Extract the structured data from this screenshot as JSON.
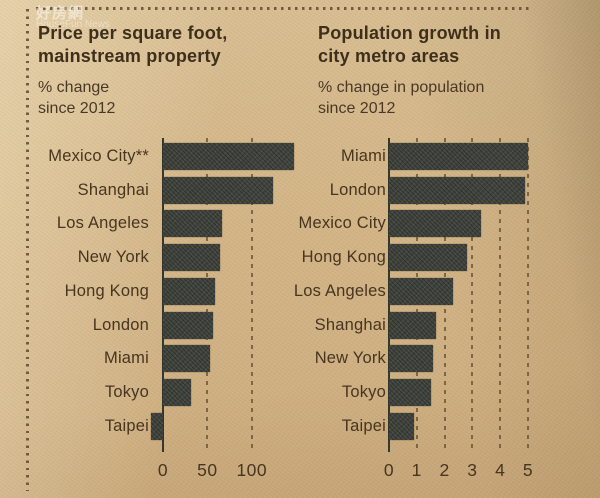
{
  "watermark": {
    "line1": "好房網",
    "line2": "HouseFun News"
  },
  "chart_data": [
    {
      "type": "bar",
      "orientation": "horizontal",
      "title": "Price per square foot, mainstream property",
      "title_lines": [
        "Price per square foot,",
        "mainstream property"
      ],
      "subtitle": "% change since 2012",
      "subtitle_lines": [
        "% change",
        "since 2012"
      ],
      "categories": [
        "Mexico City**",
        "Shanghai",
        "Los Angeles",
        "New York",
        "Hong Kong",
        "London",
        "Miami",
        "Tokyo",
        "Taipei"
      ],
      "values": [
        148,
        124,
        67,
        64,
        59,
        56,
        53,
        32,
        -13
      ],
      "xticks": [
        0,
        50,
        100
      ],
      "xtick_labels": [
        "0",
        "50",
        "100"
      ],
      "xlim": [
        -17,
        161
      ],
      "grid": "vertical-dashed",
      "legend": "none",
      "bar_color": "#41453f",
      "paper_color": "#d3b587"
    },
    {
      "type": "bar",
      "orientation": "horizontal",
      "title": "Population growth in city metro areas",
      "title_lines": [
        "Population growth in",
        "city metro areas"
      ],
      "subtitle": "% change in population since 2012",
      "subtitle_lines": [
        "% change in population",
        "since 2012"
      ],
      "categories": [
        "Miami",
        "London",
        "Mexico City",
        "Hong Kong",
        "Los Angeles",
        "Shanghai",
        "New York",
        "Tokyo",
        "Taipei"
      ],
      "values": [
        5.0,
        4.9,
        3.3,
        2.8,
        2.3,
        1.7,
        1.6,
        1.5,
        0.9
      ],
      "xticks": [
        0,
        1,
        2,
        3,
        4,
        5
      ],
      "xtick_labels": [
        "0",
        "1",
        "2",
        "3",
        "4",
        "5"
      ],
      "xlim": [
        0,
        5.5
      ],
      "grid": "vertical-dashed",
      "legend": "none",
      "bar_color": "#41453f",
      "paper_color": "#d3b587"
    }
  ]
}
